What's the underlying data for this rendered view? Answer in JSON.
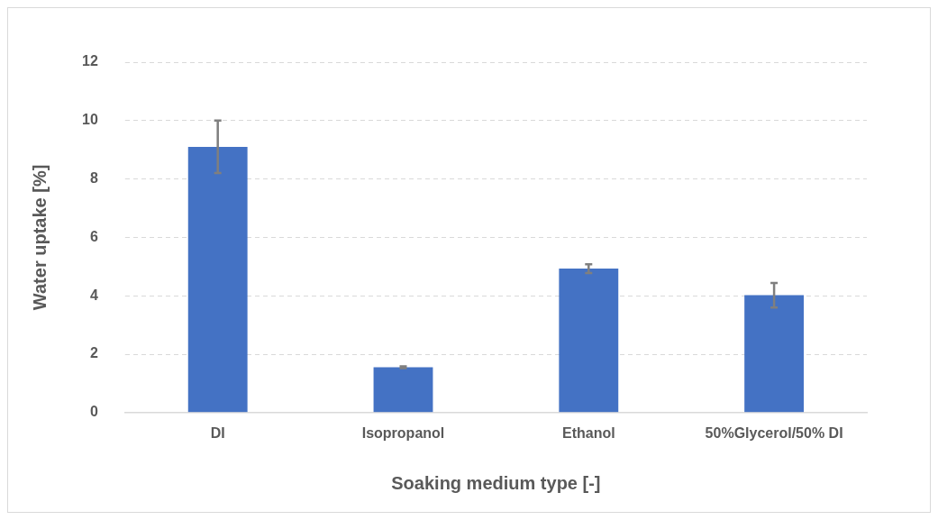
{
  "chart_data": {
    "type": "bar",
    "xlabel": "Soaking medium type [-]",
    "ylabel": "Water uptake [%]",
    "categories": [
      "DI",
      "Isopropanol",
      "Ethanol",
      "50%Glycerol/50% DI"
    ],
    "values": [
      9.1,
      1.55,
      4.93,
      4.02
    ],
    "errors": [
      0.9,
      0.03,
      0.15,
      0.42
    ],
    "color": "#4472c4",
    "ylim": [
      0,
      12
    ],
    "yticks": [
      0,
      2,
      4,
      6,
      8,
      10,
      12
    ],
    "grid": "y",
    "legend": false
  }
}
